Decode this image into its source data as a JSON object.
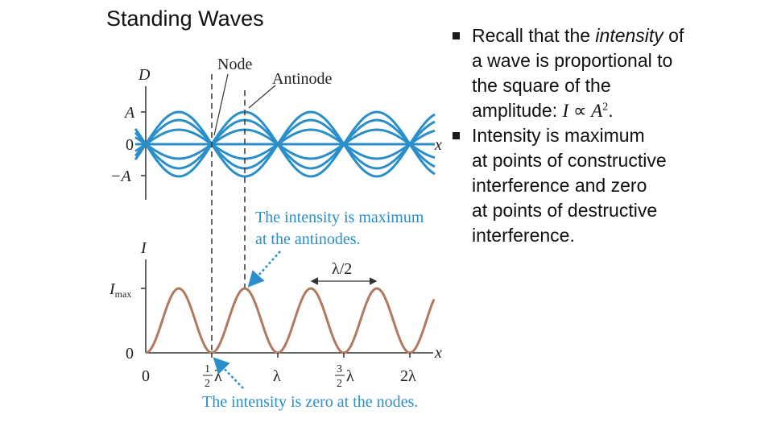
{
  "slide": {
    "title": "Standing Waves",
    "bullets": [
      {
        "pre": "Recall that the ",
        "italic": "intensity",
        "mid": " of a wave is proportional to the square of the amplitude: ",
        "formula_I": "I",
        "formula_sym": " ∝ ",
        "formula_A": "A",
        "formula_exp": "2",
        "end": "."
      },
      {
        "line1": "Intensity is maximum",
        "line2": "at points of constructive interference and zero",
        "line3": "at points of destructive interference."
      }
    ]
  },
  "figure": {
    "colors": {
      "wave": "#2a8fc8",
      "intensity": "#b07a5f",
      "callout": "#2a8fc8",
      "axis": "#333333"
    },
    "top_graph": {
      "ylabel": "D",
      "xlabel": "x",
      "ticks": [
        "A",
        "0",
        "−A"
      ],
      "node_label": "Node",
      "antinode_label": "Antinode",
      "amplitudes": [
        1,
        0.75,
        0.45,
        -0.45,
        -0.75,
        -1
      ]
    },
    "bottom_graph": {
      "ylabel": "I",
      "ymax_label": "I",
      "ymax_sub": "max",
      "zero_label": "0",
      "xlabel": "x",
      "xticks": [
        {
          "num": "",
          "den": "",
          "sym": "0"
        },
        {
          "num": "1",
          "den": "2",
          "sym": "λ"
        },
        {
          "num": "",
          "den": "",
          "sym": "λ"
        },
        {
          "num": "3",
          "den": "2",
          "sym": "λ"
        },
        {
          "num": "",
          "den": "",
          "sym": "2λ"
        }
      ],
      "half_lambda_label": "λ/2"
    },
    "callout_max": [
      "The intensity is maximum",
      "at the antinodes."
    ],
    "callout_zero": "The intensity is zero at the nodes."
  }
}
